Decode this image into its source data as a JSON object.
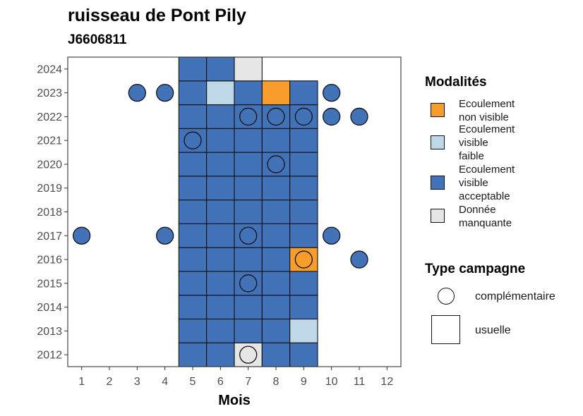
{
  "chart_data": {
    "type": "heatmap",
    "title": "ruisseau de Pont Pily",
    "subtitle": "J6606811",
    "xlabel": "Mois",
    "ylabel": "",
    "x_ticks": [
      1,
      2,
      3,
      4,
      5,
      6,
      7,
      8,
      9,
      10,
      11,
      12
    ],
    "y_ticks": [
      2012,
      2013,
      2014,
      2015,
      2016,
      2017,
      2018,
      2019,
      2020,
      2021,
      2022,
      2023,
      2024
    ],
    "grid": false,
    "colors": {
      "non_visible": "#F89C2C",
      "visible_faible": "#BFD8E8",
      "visible_acceptable": "#4273B8",
      "manquante": "#E6E6E6"
    },
    "cells": [
      {
        "year": 2012,
        "month": 5,
        "value": "visible_acceptable"
      },
      {
        "year": 2012,
        "month": 6,
        "value": "visible_acceptable"
      },
      {
        "year": 2012,
        "month": 7,
        "value": "manquante"
      },
      {
        "year": 2012,
        "month": 8,
        "value": "visible_acceptable"
      },
      {
        "year": 2012,
        "month": 9,
        "value": "visible_acceptable"
      },
      {
        "year": 2013,
        "month": 5,
        "value": "visible_acceptable"
      },
      {
        "year": 2013,
        "month": 6,
        "value": "visible_acceptable"
      },
      {
        "year": 2013,
        "month": 7,
        "value": "visible_acceptable"
      },
      {
        "year": 2013,
        "month": 8,
        "value": "visible_acceptable"
      },
      {
        "year": 2013,
        "month": 9,
        "value": "visible_faible"
      },
      {
        "year": 2014,
        "month": 5,
        "value": "visible_acceptable"
      },
      {
        "year": 2014,
        "month": 6,
        "value": "visible_acceptable"
      },
      {
        "year": 2014,
        "month": 7,
        "value": "visible_acceptable"
      },
      {
        "year": 2014,
        "month": 8,
        "value": "visible_acceptable"
      },
      {
        "year": 2014,
        "month": 9,
        "value": "visible_acceptable"
      },
      {
        "year": 2015,
        "month": 5,
        "value": "visible_acceptable"
      },
      {
        "year": 2015,
        "month": 6,
        "value": "visible_acceptable"
      },
      {
        "year": 2015,
        "month": 7,
        "value": "visible_acceptable"
      },
      {
        "year": 2015,
        "month": 8,
        "value": "visible_acceptable"
      },
      {
        "year": 2015,
        "month": 9,
        "value": "visible_acceptable"
      },
      {
        "year": 2016,
        "month": 5,
        "value": "visible_acceptable"
      },
      {
        "year": 2016,
        "month": 6,
        "value": "visible_acceptable"
      },
      {
        "year": 2016,
        "month": 7,
        "value": "visible_acceptable"
      },
      {
        "year": 2016,
        "month": 8,
        "value": "visible_acceptable"
      },
      {
        "year": 2016,
        "month": 9,
        "value": "non_visible"
      },
      {
        "year": 2017,
        "month": 5,
        "value": "visible_acceptable"
      },
      {
        "year": 2017,
        "month": 6,
        "value": "visible_acceptable"
      },
      {
        "year": 2017,
        "month": 7,
        "value": "visible_acceptable"
      },
      {
        "year": 2017,
        "month": 8,
        "value": "visible_acceptable"
      },
      {
        "year": 2017,
        "month": 9,
        "value": "visible_acceptable"
      },
      {
        "year": 2018,
        "month": 5,
        "value": "visible_acceptable"
      },
      {
        "year": 2018,
        "month": 6,
        "value": "visible_acceptable"
      },
      {
        "year": 2018,
        "month": 7,
        "value": "visible_acceptable"
      },
      {
        "year": 2018,
        "month": 8,
        "value": "visible_acceptable"
      },
      {
        "year": 2018,
        "month": 9,
        "value": "visible_acceptable"
      },
      {
        "year": 2019,
        "month": 5,
        "value": "visible_acceptable"
      },
      {
        "year": 2019,
        "month": 6,
        "value": "visible_acceptable"
      },
      {
        "year": 2019,
        "month": 7,
        "value": "visible_acceptable"
      },
      {
        "year": 2019,
        "month": 8,
        "value": "visible_acceptable"
      },
      {
        "year": 2019,
        "month": 9,
        "value": "visible_acceptable"
      },
      {
        "year": 2020,
        "month": 5,
        "value": "visible_acceptable"
      },
      {
        "year": 2020,
        "month": 6,
        "value": "visible_acceptable"
      },
      {
        "year": 2020,
        "month": 7,
        "value": "visible_acceptable"
      },
      {
        "year": 2020,
        "month": 8,
        "value": "visible_acceptable"
      },
      {
        "year": 2020,
        "month": 9,
        "value": "visible_acceptable"
      },
      {
        "year": 2021,
        "month": 5,
        "value": "visible_acceptable"
      },
      {
        "year": 2021,
        "month": 6,
        "value": "visible_acceptable"
      },
      {
        "year": 2021,
        "month": 7,
        "value": "visible_acceptable"
      },
      {
        "year": 2021,
        "month": 8,
        "value": "visible_acceptable"
      },
      {
        "year": 2021,
        "month": 9,
        "value": "visible_acceptable"
      },
      {
        "year": 2022,
        "month": 5,
        "value": "visible_acceptable"
      },
      {
        "year": 2022,
        "month": 6,
        "value": "visible_acceptable"
      },
      {
        "year": 2022,
        "month": 7,
        "value": "visible_acceptable"
      },
      {
        "year": 2022,
        "month": 8,
        "value": "visible_acceptable"
      },
      {
        "year": 2022,
        "month": 9,
        "value": "visible_acceptable"
      },
      {
        "year": 2023,
        "month": 5,
        "value": "visible_acceptable"
      },
      {
        "year": 2023,
        "month": 6,
        "value": "visible_faible"
      },
      {
        "year": 2023,
        "month": 7,
        "value": "visible_acceptable"
      },
      {
        "year": 2023,
        "month": 8,
        "value": "non_visible"
      },
      {
        "year": 2023,
        "month": 9,
        "value": "visible_acceptable"
      },
      {
        "year": 2024,
        "month": 5,
        "value": "visible_acceptable"
      },
      {
        "year": 2024,
        "month": 6,
        "value": "visible_acceptable"
      },
      {
        "year": 2024,
        "month": 7,
        "value": "manquante"
      }
    ],
    "points": [
      {
        "year": 2012,
        "month": 7,
        "value": "manquante"
      },
      {
        "year": 2015,
        "month": 7,
        "value": "visible_acceptable"
      },
      {
        "year": 2016,
        "month": 9,
        "value": "non_visible"
      },
      {
        "year": 2016,
        "month": 11,
        "value": "visible_acceptable"
      },
      {
        "year": 2017,
        "month": 1,
        "value": "visible_acceptable"
      },
      {
        "year": 2017,
        "month": 4,
        "value": "visible_acceptable"
      },
      {
        "year": 2017,
        "month": 7,
        "value": "visible_acceptable"
      },
      {
        "year": 2017,
        "month": 10,
        "value": "visible_acceptable"
      },
      {
        "year": 2020,
        "month": 8,
        "value": "visible_acceptable"
      },
      {
        "year": 2021,
        "month": 5,
        "value": "visible_acceptable"
      },
      {
        "year": 2022,
        "month": 7,
        "value": "visible_acceptable"
      },
      {
        "year": 2022,
        "month": 8,
        "value": "visible_acceptable"
      },
      {
        "year": 2022,
        "month": 9,
        "value": "visible_acceptable"
      },
      {
        "year": 2022,
        "month": 10,
        "value": "visible_acceptable"
      },
      {
        "year": 2022,
        "month": 11,
        "value": "visible_acceptable"
      },
      {
        "year": 2023,
        "month": 3,
        "value": "visible_acceptable"
      },
      {
        "year": 2023,
        "month": 4,
        "value": "visible_acceptable"
      },
      {
        "year": 2023,
        "month": 10,
        "value": "visible_acceptable"
      }
    ],
    "legend_modalites": {
      "title": "Modalités",
      "items": [
        {
          "key": "non_visible",
          "label_lines": [
            "Ecoulement",
            "non visible"
          ]
        },
        {
          "key": "visible_faible",
          "label_lines": [
            "Ecoulement",
            "visible",
            "faible"
          ]
        },
        {
          "key": "visible_acceptable",
          "label_lines": [
            "Ecoulement",
            "visible",
            "acceptable"
          ]
        },
        {
          "key": "manquante",
          "label_lines": [
            "Donnée",
            "manquante"
          ]
        }
      ]
    },
    "legend_campagne": {
      "title": "Type campagne",
      "items": [
        {
          "shape": "circle",
          "label": "complémentaire"
        },
        {
          "shape": "square",
          "label": "usuelle"
        }
      ]
    }
  }
}
